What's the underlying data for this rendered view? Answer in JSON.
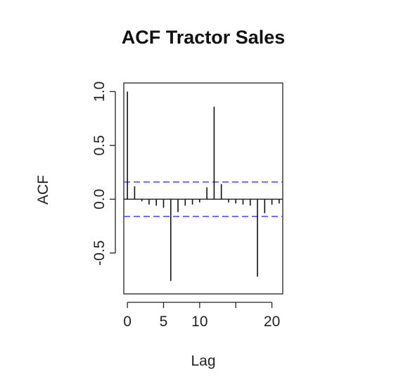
{
  "chart_data": {
    "type": "bar",
    "title": "ACF Tractor Sales",
    "xlabel": "Lag",
    "ylabel": "ACF",
    "x_ticks": [
      "0",
      "5",
      "10",
      "20"
    ],
    "y_ticks": [
      "-0.5",
      "0.0",
      "0.5",
      "1.0"
    ],
    "xlim": [
      -0.5,
      21.5
    ],
    "ylim": [
      -0.88,
      1.08
    ],
    "confidence_limits": [
      0.16,
      -0.16
    ],
    "confidence_line_color": "#4444ff",
    "series": [
      {
        "lags": [
          0,
          1,
          2,
          3,
          4,
          5,
          6,
          7,
          8,
          9,
          10,
          11,
          12,
          13,
          14,
          15,
          16,
          17,
          18,
          19,
          20,
          21
        ],
        "values": [
          1.0,
          0.12,
          -0.02,
          -0.05,
          -0.06,
          -0.08,
          -0.76,
          -0.12,
          -0.06,
          -0.05,
          -0.03,
          0.11,
          0.86,
          0.14,
          -0.03,
          -0.04,
          -0.05,
          -0.06,
          -0.72,
          -0.13,
          -0.05,
          -0.04
        ]
      }
    ]
  }
}
